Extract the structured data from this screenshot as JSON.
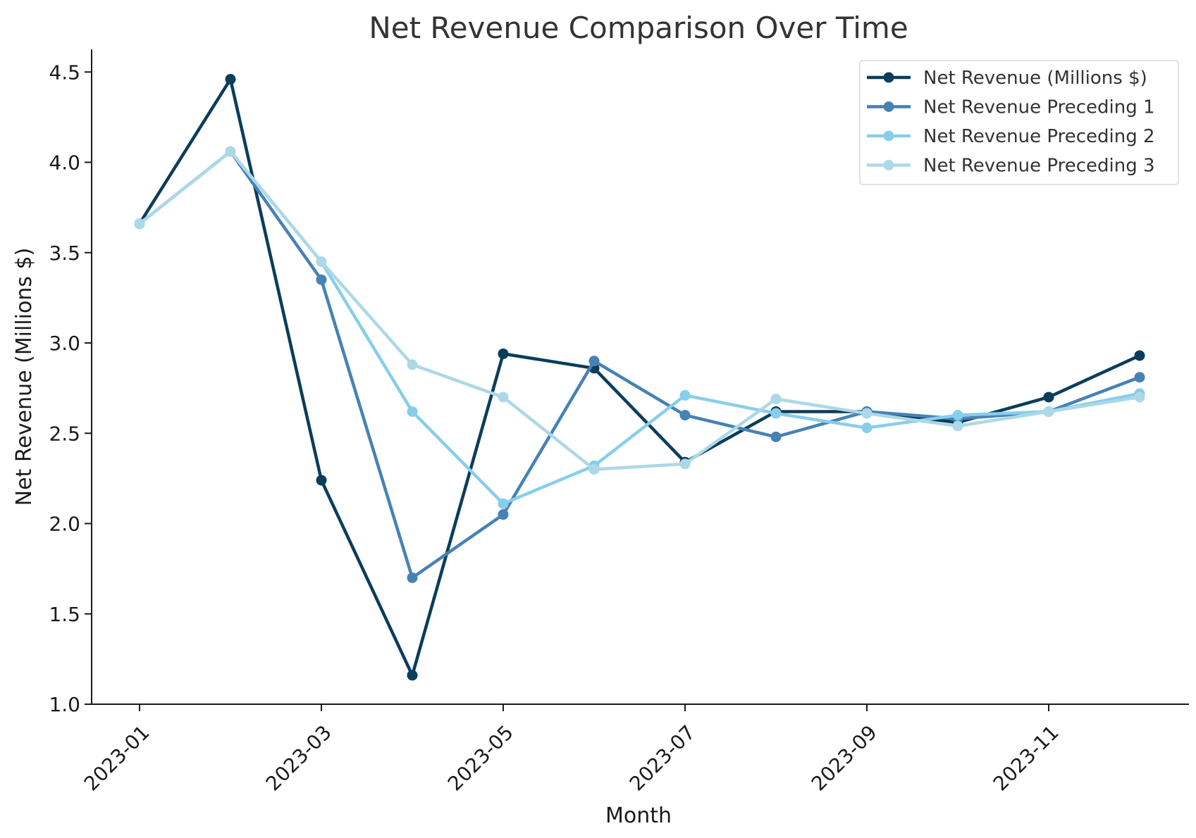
{
  "chart_data": {
    "type": "line",
    "title": "Net Revenue Comparison Over Time",
    "xlabel": "Month",
    "ylabel": "Net Revenue (Millions $)",
    "x": [
      "2023-01",
      "2023-02",
      "2023-03",
      "2023-04",
      "2023-05",
      "2023-06",
      "2023-07",
      "2023-08",
      "2023-09",
      "2023-10",
      "2023-11",
      "2023-12"
    ],
    "x_tick_labels": [
      "2023-01",
      "2023-03",
      "2023-05",
      "2023-07",
      "2023-09",
      "2023-11"
    ],
    "y_ticks": [
      "1.0",
      "1.5",
      "2.0",
      "2.5",
      "3.0",
      "3.5",
      "4.0",
      "4.5"
    ],
    "ylim": [
      1.0,
      4.62
    ],
    "grid": false,
    "legend_position": "top-right",
    "series": [
      {
        "name": "Net Revenue (Millions $)",
        "color": "#0b3d5c",
        "values": [
          3.66,
          4.46,
          2.24,
          1.16,
          2.94,
          2.86,
          2.34,
          2.62,
          2.62,
          2.56,
          2.7,
          2.93
        ]
      },
      {
        "name": "Net Revenue Preceding 1",
        "color": "#4682b4",
        "values": [
          3.66,
          4.06,
          3.35,
          1.7,
          2.05,
          2.9,
          2.6,
          2.48,
          2.62,
          2.58,
          2.62,
          2.81
        ]
      },
      {
        "name": "Net Revenue Preceding 2",
        "color": "#87ceeb",
        "values": [
          3.66,
          4.06,
          3.45,
          2.62,
          2.11,
          2.32,
          2.71,
          2.61,
          2.53,
          2.6,
          2.62,
          2.72
        ]
      },
      {
        "name": "Net Revenue Preceding 3",
        "color": "#add8e6",
        "values": [
          3.66,
          4.06,
          3.45,
          2.88,
          2.7,
          2.3,
          2.33,
          2.69,
          2.61,
          2.54,
          2.62,
          2.7
        ]
      }
    ]
  }
}
